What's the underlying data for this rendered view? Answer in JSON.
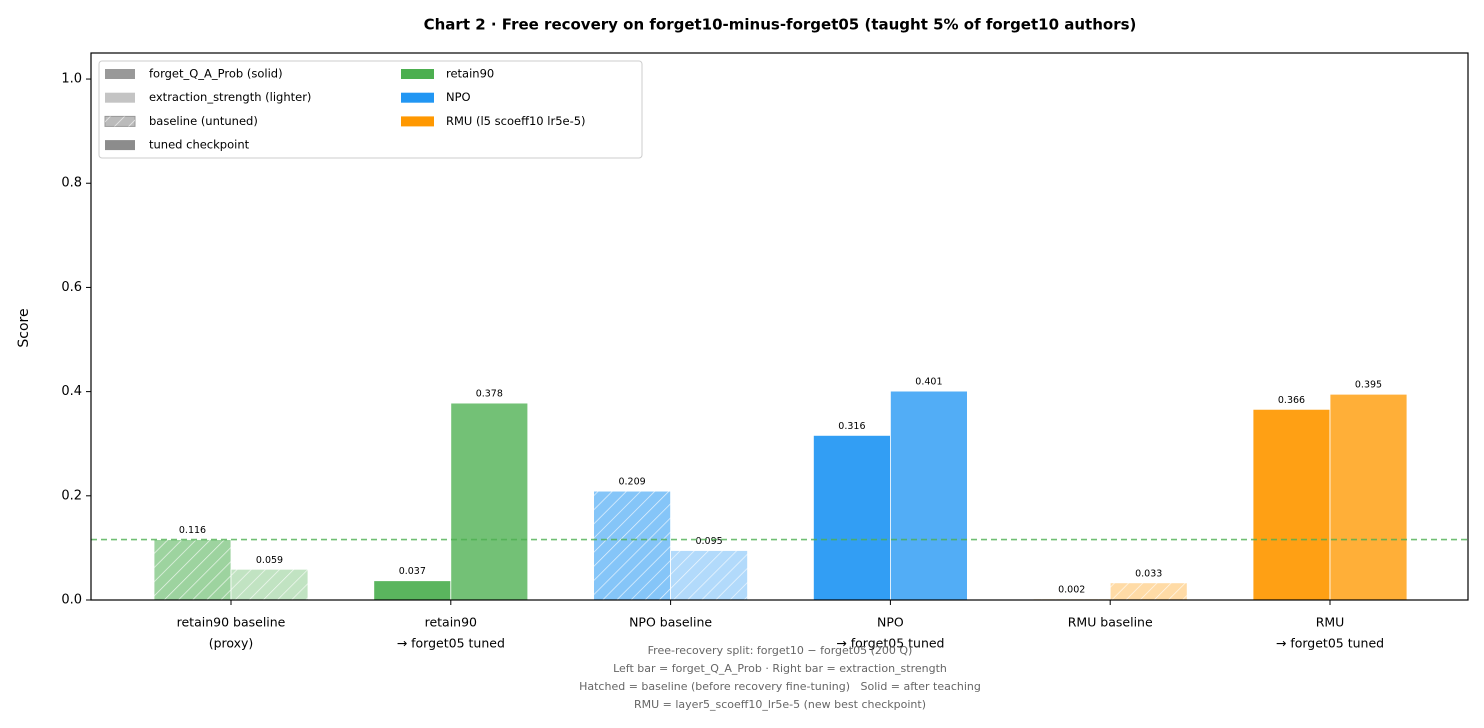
{
  "chart_data": {
    "type": "bar",
    "title": "Chart 2 · Free recovery on forget10-minus-forget05 (taught 5% of forget10 authors)",
    "y_label": "Score",
    "categories": [
      [
        "retain90 baseline",
        "(proxy)"
      ],
      [
        "retain90",
        "→ forget05 tuned"
      ],
      [
        "NPO baseline"
      ],
      [
        "NPO",
        "→ forget05 tuned"
      ],
      [
        "RMU baseline"
      ],
      [
        "RMU",
        "→ forget05 tuned"
      ]
    ],
    "category_group_index": [
      0,
      0,
      1,
      1,
      2,
      2
    ],
    "category_hatched": [
      true,
      false,
      true,
      false,
      true,
      false
    ],
    "series": [
      {
        "name": "forget_Q_A_Prob (solid)",
        "color": "#999999",
        "values": [
          0.116,
          0.037,
          0.209,
          0.316,
          0.002,
          0.366
        ]
      },
      {
        "name": "extraction_strength (lighter)",
        "color": "#c4c4c4",
        "values": [
          0.059,
          0.378,
          0.095,
          0.401,
          0.033,
          0.395
        ]
      }
    ],
    "style_legend": [
      {
        "name": "baseline (untuned)",
        "color": "#bbbbbb",
        "hatched": true
      },
      {
        "name": "tuned checkpoint",
        "color": "#8c8c8c",
        "hatched": false
      }
    ],
    "groups": [
      {
        "name": "retain90",
        "color": "#4caf50"
      },
      {
        "name": "NPO",
        "color": "#2196f3"
      },
      {
        "name": "RMU (l5 scoeff10 lr5e-5)",
        "color": "#ff9800"
      }
    ],
    "reference_line": {
      "value": 0.116,
      "color": "#4caf50",
      "dashed": true
    },
    "ylim": [
      0,
      1.05
    ],
    "yticks": [
      {
        "value": 0,
        "label": "0.0"
      },
      0.2,
      0.4,
      0.6,
      0.8,
      {
        "value": 1,
        "label": "1.0"
      }
    ],
    "legend_position": "upper left",
    "footnote": [
      "Free-recovery split: forget10 − forget05 (200 Q)",
      "Left bar = forget_Q_A_Prob · Right bar = extraction_strength",
      "Hatched = baseline (before recovery fine-tuning)   Solid = after teaching",
      "RMU = layer5_scoeff10_lr5e-5 (new best checkpoint)"
    ]
  }
}
